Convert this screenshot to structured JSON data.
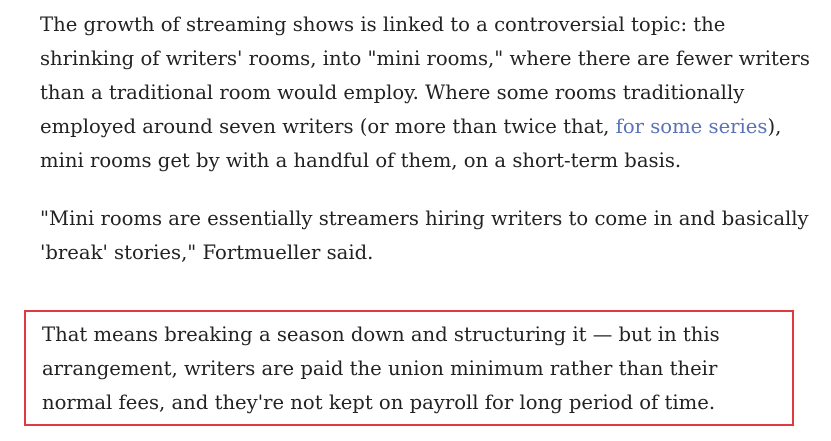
{
  "article": {
    "para1": {
      "before_link": "The growth of streaming shows is linked to a controversial topic: the shrinking of writers' rooms, into \"mini rooms,\" where there are fewer writers than a traditional room would employ. Where some rooms traditionally employed around seven writers (or more than twice that, ",
      "link_text": "for some series",
      "after_link": "), mini rooms get by with a handful of them, on a short-term basis."
    },
    "para2": "\"Mini rooms are essentially streamers hiring writers to come in and basically 'break' stories,\" Fortmueller said.",
    "para3": "That means breaking a season down and structuring it — but in this arrangement, writers are paid the union minimum rather than their normal fees, and they're not kept on payroll for long period of time."
  },
  "colors": {
    "text": "#222222",
    "link": "#5a73b8",
    "highlight_border": "#e0393e"
  }
}
